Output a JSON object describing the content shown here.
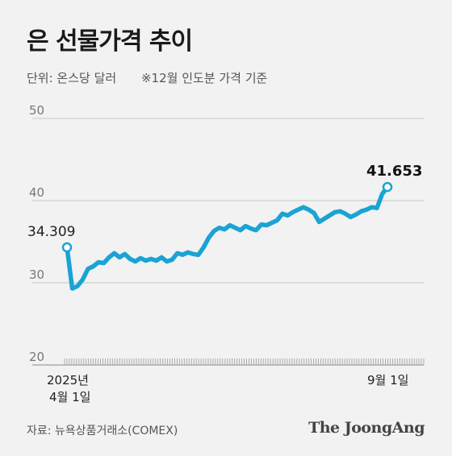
{
  "header": {
    "title": "은 선물가격 추이",
    "unit": "단위: 온스당 달러",
    "note": "※12월 인도분 가격 기준"
  },
  "footer": {
    "source": "자료: 뉴욕상품거래소(COMEX)",
    "brand": "The JoongAng"
  },
  "chart_data": {
    "type": "line",
    "xlabel": "",
    "ylabel": "",
    "ylim": [
      20,
      50
    ],
    "yticks": [
      20,
      30,
      40,
      50
    ],
    "grid": true,
    "x_tick_labels": [
      {
        "label": "2025년\n4월 1일"
      },
      {
        "label": "9월 1일"
      }
    ],
    "annotations": [
      {
        "label": "34.309",
        "value": 34.309
      },
      {
        "label": "41.653",
        "value": 41.653
      }
    ],
    "color": "#1aa3d4",
    "series": [
      {
        "values": [
          34.309,
          29.3,
          29.6,
          30.4,
          31.7,
          32.0,
          32.5,
          32.4,
          33.1,
          33.6,
          33.1,
          33.5,
          32.9,
          32.6,
          33.0,
          32.7,
          32.9,
          32.7,
          33.1,
          32.6,
          32.8,
          33.6,
          33.4,
          33.7,
          33.5,
          33.4,
          34.3,
          35.5,
          36.3,
          36.7,
          36.5,
          37.0,
          36.7,
          36.4,
          36.9,
          36.6,
          36.4,
          37.1,
          37.0,
          37.3,
          37.6,
          38.4,
          38.2,
          38.6,
          38.9,
          39.2,
          38.9,
          38.5,
          37.4,
          37.8,
          38.2,
          38.6,
          38.7,
          38.4,
          38.0,
          38.3,
          38.7,
          38.9,
          39.2,
          39.1,
          40.8,
          41.653
        ]
      }
    ]
  }
}
